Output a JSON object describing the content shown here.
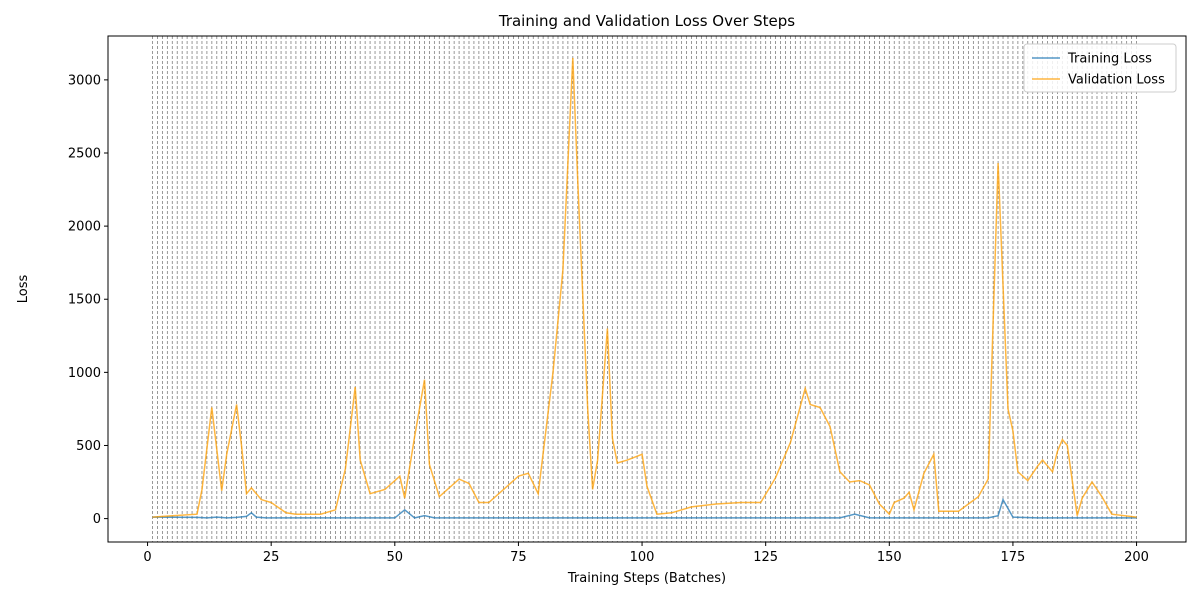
{
  "chart_data": {
    "type": "line",
    "title": "Training and Validation Loss Over Steps",
    "xlabel": "Training Steps (Batches)",
    "ylabel": "Loss",
    "xlim": [
      -8,
      210
    ],
    "ylim": [
      -160,
      3300
    ],
    "xticks": [
      0,
      25,
      50,
      75,
      100,
      125,
      150,
      175,
      200
    ],
    "yticks": [
      0,
      500,
      1000,
      1500,
      2000,
      2500,
      3000
    ],
    "grid": false,
    "legend": "top-right",
    "epoch_markers": {
      "start": 1,
      "end": 200,
      "step": 1,
      "style": "dashed-gray"
    },
    "series": [
      {
        "name": "Training Loss",
        "color": "#1f77b4",
        "x": [
          1,
          10,
          12,
          14,
          16,
          18,
          20,
          21,
          22,
          24,
          30,
          40,
          50,
          52,
          54,
          56,
          58,
          60,
          70,
          80,
          90,
          100,
          105,
          110,
          120,
          130,
          140,
          143,
          146,
          150,
          160,
          170,
          172,
          173,
          175,
          180,
          190,
          200
        ],
        "values": [
          10,
          8,
          5,
          10,
          5,
          8,
          15,
          40,
          10,
          5,
          5,
          5,
          5,
          60,
          5,
          20,
          5,
          5,
          5,
          5,
          5,
          5,
          5,
          5,
          5,
          5,
          5,
          30,
          5,
          5,
          5,
          5,
          20,
          130,
          10,
          5,
          5,
          5
        ]
      },
      {
        "name": "Validation Loss",
        "color": "#ff9f00",
        "x": [
          1,
          5,
          10,
          11,
          13,
          15,
          16,
          18,
          19,
          20,
          21,
          23,
          25,
          28,
          30,
          35,
          38,
          40,
          42,
          43,
          45,
          48,
          51,
          52,
          54,
          56,
          57,
          59,
          63,
          65,
          67,
          69,
          72,
          75,
          77,
          79,
          82,
          84,
          86,
          87,
          89,
          90,
          91,
          93,
          94,
          95,
          97,
          100,
          101,
          103,
          106,
          110,
          115,
          120,
          124,
          127,
          130,
          133,
          134,
          136,
          138,
          140,
          142,
          144,
          146,
          148,
          150,
          151,
          153,
          154,
          155,
          157,
          159,
          160,
          162,
          164,
          166,
          168,
          170,
          172,
          174,
          175,
          176,
          178,
          180,
          181,
          183,
          184,
          185,
          186,
          188,
          189,
          191,
          193,
          195,
          200
        ],
        "values": [
          10,
          20,
          30,
          200,
          760,
          190,
          440,
          780,
          500,
          170,
          210,
          130,
          110,
          40,
          30,
          30,
          60,
          340,
          900,
          400,
          170,
          200,
          290,
          140,
          560,
          950,
          370,
          150,
          270,
          240,
          110,
          110,
          200,
          290,
          310,
          170,
          1000,
          1700,
          3150,
          2300,
          750,
          200,
          400,
          1300,
          550,
          380,
          400,
          440,
          220,
          30,
          40,
          80,
          100,
          110,
          110,
          280,
          520,
          890,
          780,
          760,
          630,
          320,
          250,
          260,
          230,
          100,
          30,
          110,
          140,
          180,
          60,
          310,
          440,
          50,
          50,
          50,
          100,
          150,
          270,
          2430,
          750,
          600,
          320,
          260,
          360,
          400,
          320,
          460,
          540,
          500,
          20,
          140,
          250,
          150,
          30,
          10
        ]
      }
    ]
  }
}
